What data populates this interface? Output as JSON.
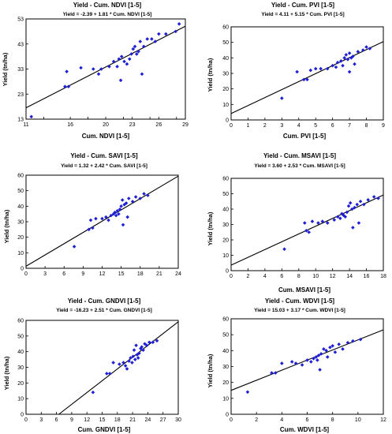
{
  "chart_data": [
    {
      "type": "scatter",
      "title": "Yield - Cum. NDVI [1-5]",
      "equation": "Yield = -2.39 + 1.81 * Cum. NDVI [1-5]",
      "xlabel": "Cum. NDVI [1-5]",
      "ylabel": "Yield (tn/ha)",
      "xlim": [
        11,
        29
      ],
      "ylim": [
        13,
        53
      ],
      "xticks": [
        11,
        13,
        16,
        18,
        20,
        22,
        23,
        25,
        26,
        28,
        29
      ],
      "xticklabels": [
        "11",
        "",
        "16",
        "",
        "20",
        "",
        "23",
        "",
        "26",
        "",
        "29"
      ],
      "yticks": [
        13,
        23,
        33,
        43,
        53
      ],
      "yticklabels": [
        "13",
        "23",
        "33",
        "43",
        "53"
      ],
      "fit": {
        "intercept": -2.39,
        "slope": 1.81
      },
      "points": [
        [
          11.6,
          14
        ],
        [
          15.4,
          26
        ],
        [
          15.6,
          32
        ],
        [
          15.8,
          26
        ],
        [
          17.2,
          33.5
        ],
        [
          18.6,
          33
        ],
        [
          19.2,
          31
        ],
        [
          19.5,
          33
        ],
        [
          20.4,
          34
        ],
        [
          20.9,
          36
        ],
        [
          21.3,
          34
        ],
        [
          21.5,
          37
        ],
        [
          21.7,
          28.5
        ],
        [
          21.8,
          38
        ],
        [
          22.1,
          36
        ],
        [
          22.4,
          35
        ],
        [
          22.7,
          37
        ],
        [
          22.9,
          39
        ],
        [
          23.1,
          41
        ],
        [
          23.3,
          42
        ],
        [
          23.5,
          39
        ],
        [
          23.7,
          40
        ],
        [
          23.9,
          44
        ],
        [
          24.1,
          31
        ],
        [
          24.3,
          42
        ],
        [
          24.7,
          45
        ],
        [
          25.2,
          45
        ],
        [
          25.6,
          44
        ],
        [
          26.0,
          47
        ],
        [
          26.8,
          47
        ],
        [
          27.9,
          48
        ],
        [
          28.3,
          51
        ]
      ],
      "grid": false,
      "legend": "none"
    },
    {
      "type": "scatter",
      "title": "Yield - Cum. PVI [1-5]",
      "equation": "Yield = 4.11 + 5.15 * Cum. PVI [1-5]",
      "xlabel": "Cum. PVI [1-5]",
      "ylabel": "Yield (tn/ha)",
      "xlim": [
        0,
        9
      ],
      "ylim": [
        0,
        60
      ],
      "xticks": [
        0,
        1,
        2,
        3,
        4,
        5,
        6,
        7,
        8,
        9
      ],
      "xticklabels": [
        "0",
        "1",
        "2",
        "3",
        "4",
        "5",
        "6",
        "7",
        "8",
        "9"
      ],
      "yticks": [
        0,
        10,
        20,
        30,
        40,
        50,
        60
      ],
      "yticklabels": [
        "0",
        "10",
        "20",
        "30",
        "40",
        "50",
        "60"
      ],
      "fit": {
        "intercept": 4.11,
        "slope": 5.15
      },
      "points": [
        [
          3.0,
          14
        ],
        [
          3.9,
          31
        ],
        [
          4.3,
          26
        ],
        [
          4.5,
          26
        ],
        [
          4.7,
          32
        ],
        [
          5.0,
          33
        ],
        [
          5.3,
          33
        ],
        [
          5.7,
          33
        ],
        [
          6.0,
          35
        ],
        [
          6.2,
          34
        ],
        [
          6.3,
          37
        ],
        [
          6.5,
          38
        ],
        [
          6.6,
          35
        ],
        [
          6.7,
          40
        ],
        [
          6.8,
          42
        ],
        [
          6.9,
          39
        ],
        [
          7.0,
          43
        ],
        [
          7.1,
          40
        ],
        [
          7.2,
          41
        ],
        [
          7.0,
          31
        ],
        [
          7.3,
          36
        ],
        [
          7.5,
          44
        ],
        [
          7.8,
          45
        ],
        [
          8.0,
          47
        ],
        [
          8.2,
          46
        ]
      ],
      "grid": false,
      "legend": "none"
    },
    {
      "type": "scatter",
      "title": "Yield - Cum. SAVI [1-5]",
      "equation": "Yield = 1.32 + 2.42 * Cum. SAVI [1-5]",
      "xlabel": "",
      "ylabel": "Yield (tn/ha)",
      "xlim": [
        0,
        24
      ],
      "ylim": [
        0,
        60
      ],
      "xticks": [
        0,
        3,
        6,
        9,
        12,
        15,
        18,
        21,
        24
      ],
      "xticklabels": [
        "0",
        "3",
        "6",
        "9",
        "12",
        "15",
        "18",
        "21",
        "24"
      ],
      "yticks": [
        0,
        10,
        20,
        30,
        40,
        50,
        60
      ],
      "yticklabels": [
        "0",
        "10",
        "20",
        "30",
        "40",
        "50",
        "60"
      ],
      "fit": {
        "intercept": 1.32,
        "slope": 2.42
      },
      "points": [
        [
          7.6,
          14
        ],
        [
          9.9,
          25
        ],
        [
          10.2,
          31
        ],
        [
          10.5,
          26
        ],
        [
          11.0,
          32
        ],
        [
          12.0,
          32
        ],
        [
          12.6,
          33
        ],
        [
          13.0,
          31
        ],
        [
          13.4,
          34
        ],
        [
          13.8,
          35
        ],
        [
          14.0,
          36
        ],
        [
          14.2,
          34
        ],
        [
          14.4,
          37
        ],
        [
          14.6,
          35
        ],
        [
          14.8,
          38
        ],
        [
          15.0,
          40
        ],
        [
          15.2,
          44
        ],
        [
          15.3,
          28
        ],
        [
          15.5,
          41
        ],
        [
          15.8,
          42
        ],
        [
          16.0,
          33
        ],
        [
          16.2,
          45
        ],
        [
          16.8,
          43
        ],
        [
          17.3,
          46
        ],
        [
          18.0,
          45
        ],
        [
          18.6,
          48
        ],
        [
          19.2,
          47
        ]
      ],
      "grid": false,
      "legend": "none"
    },
    {
      "type": "scatter",
      "title": "Yield - Cum. MSAVI [1-5]",
      "equation": "Yield = 3.60 + 2.53 * Cum. MSAVI [1-5]",
      "xlabel": "Cum. MSAVI [1-5]",
      "ylabel": "Yield (tn/ha)",
      "xlim": [
        0,
        18
      ],
      "ylim": [
        0,
        60
      ],
      "xticks": [
        0,
        2,
        4,
        6,
        8,
        10,
        12,
        14,
        16,
        18
      ],
      "xticklabels": [
        "0",
        "2",
        "4",
        "6",
        "8",
        "10",
        "12",
        "14",
        "16",
        "18"
      ],
      "yticks": [
        0,
        10,
        20,
        30,
        40,
        50,
        60
      ],
      "yticklabels": [
        "0",
        "10",
        "20",
        "30",
        "40",
        "50",
        "60"
      ],
      "fit": {
        "intercept": 3.6,
        "slope": 2.53
      },
      "points": [
        [
          6.3,
          14
        ],
        [
          8.7,
          31
        ],
        [
          8.9,
          26
        ],
        [
          9.2,
          25
        ],
        [
          9.6,
          32
        ],
        [
          10.3,
          31
        ],
        [
          10.8,
          32
        ],
        [
          11.4,
          31
        ],
        [
          12.2,
          33
        ],
        [
          12.6,
          35
        ],
        [
          12.9,
          34
        ],
        [
          13.1,
          37
        ],
        [
          13.3,
          36
        ],
        [
          13.5,
          35
        ],
        [
          13.7,
          38
        ],
        [
          13.9,
          42
        ],
        [
          14.1,
          44
        ],
        [
          14.3,
          40
        ],
        [
          14.4,
          28
        ],
        [
          14.6,
          41
        ],
        [
          14.9,
          43
        ],
        [
          15.1,
          31
        ],
        [
          15.3,
          45
        ],
        [
          15.7,
          43
        ],
        [
          16.2,
          46
        ],
        [
          16.9,
          48
        ],
        [
          17.4,
          47
        ]
      ],
      "grid": false,
      "legend": "none"
    },
    {
      "type": "scatter",
      "title": "Yield - Cum. GNDVI [1-5]",
      "equation": "Yield = -16.23 + 2.51 * Cum. GNDVI [1-5]",
      "xlabel": "Cum. GNDVI [1-5]",
      "ylabel": "Yield (tn/ha)",
      "xlim": [
        0,
        30
      ],
      "ylim": [
        0,
        60
      ],
      "xticks": [
        0,
        3,
        6,
        9,
        12,
        15,
        18,
        21,
        24,
        27,
        30
      ],
      "xticklabels": [
        "0",
        "3",
        "6",
        "9",
        "12",
        "15",
        "18",
        "21",
        "24",
        "27",
        "30"
      ],
      "yticks": [
        0,
        10,
        20,
        30,
        40,
        50,
        60
      ],
      "yticklabels": [
        "0",
        "10",
        "20",
        "30",
        "40",
        "50",
        "60"
      ],
      "fit": {
        "intercept": -16.23,
        "slope": 2.51
      },
      "points": [
        [
          13.2,
          14
        ],
        [
          15.9,
          26
        ],
        [
          16.5,
          26
        ],
        [
          17.2,
          33
        ],
        [
          18.4,
          32
        ],
        [
          19.2,
          33
        ],
        [
          19.6,
          31
        ],
        [
          19.9,
          29
        ],
        [
          20.3,
          34
        ],
        [
          20.6,
          36
        ],
        [
          20.9,
          33
        ],
        [
          21.1,
          37
        ],
        [
          21.3,
          41
        ],
        [
          21.5,
          35
        ],
        [
          21.7,
          44
        ],
        [
          21.9,
          38
        ],
        [
          22.1,
          36
        ],
        [
          22.3,
          39
        ],
        [
          22.6,
          42
        ],
        [
          22.8,
          43
        ],
        [
          23.1,
          41
        ],
        [
          23.4,
          45
        ],
        [
          23.8,
          44
        ],
        [
          24.3,
          46
        ],
        [
          25.0,
          46
        ],
        [
          25.8,
          47
        ]
      ],
      "grid": false,
      "legend": "none"
    },
    {
      "type": "scatter",
      "title": "Yield - Cum. WDVI [1-5]",
      "equation": "Yield = 15.03 + 3.17 * Cum. WDVI [1-5]",
      "xlabel": "Cum. WDVI [1-5]",
      "ylabel": "Yield (tn/ha)",
      "xlim": [
        0,
        12
      ],
      "ylim": [
        0,
        60
      ],
      "xticks": [
        0,
        2,
        4,
        6,
        8,
        10,
        12
      ],
      "xticklabels": [
        "0",
        "2",
        "4",
        "6",
        "8",
        "10",
        "12"
      ],
      "yticks": [
        0,
        10,
        20,
        30,
        40,
        50,
        60
      ],
      "yticklabels": [
        "0",
        "10",
        "20",
        "30",
        "40",
        "50",
        "60"
      ],
      "fit": {
        "intercept": 15.03,
        "slope": 3.17
      },
      "points": [
        [
          1.3,
          14
        ],
        [
          3.2,
          26
        ],
        [
          3.5,
          26
        ],
        [
          4.0,
          32
        ],
        [
          4.8,
          33
        ],
        [
          5.1,
          32
        ],
        [
          5.6,
          31
        ],
        [
          6.0,
          34
        ],
        [
          6.3,
          33
        ],
        [
          6.5,
          35
        ],
        [
          6.7,
          36
        ],
        [
          6.8,
          34
        ],
        [
          6.9,
          37
        ],
        [
          7.0,
          28
        ],
        [
          7.1,
          38
        ],
        [
          7.3,
          41
        ],
        [
          7.5,
          40
        ],
        [
          7.6,
          36
        ],
        [
          7.8,
          42
        ],
        [
          8.0,
          43
        ],
        [
          8.2,
          39
        ],
        [
          8.5,
          44
        ],
        [
          8.8,
          41
        ],
        [
          9.2,
          45
        ],
        [
          9.6,
          46
        ],
        [
          10.2,
          47
        ]
      ],
      "grid": false,
      "legend": "none"
    }
  ],
  "style": {
    "point_color": "#1f1fd6",
    "line_color": "#000000",
    "axis_color": "#000000"
  }
}
